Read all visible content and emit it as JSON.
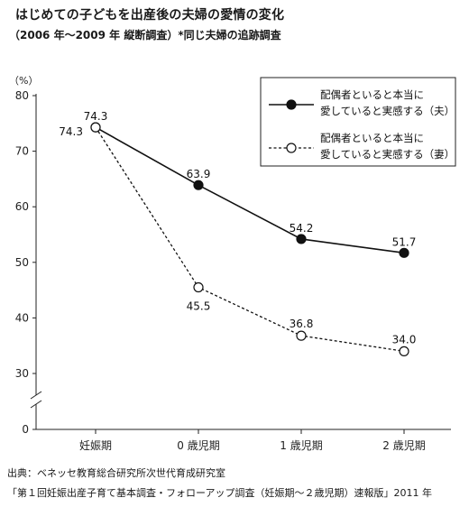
{
  "title": "はじめての子どもを出産後の夫婦の愛情の変化",
  "subtitle": "（2006 年～2009 年 縦断調査）*同じ夫婦の追跡調査",
  "source_line1": "出典：ベネッセ教育総合研究所次世代育成研究室",
  "source_line2": "「第１回妊娠出産子育て基本調査・フォローアップ調査（妊娠期～２歳児期）速報版」2011 年",
  "chart_data": {
    "type": "line",
    "categories": [
      "妊娠期",
      "0 歳児期",
      "1 歳児期",
      "2 歳児期"
    ],
    "series": [
      {
        "name": "配偶者といると本当に愛していると実感する（夫）",
        "values": [
          74.3,
          63.9,
          54.2,
          51.7
        ],
        "style": "solid",
        "marker": "filled",
        "color": "#111111"
      },
      {
        "name": "配偶者といると本当に愛していると実感する（妻）",
        "values": [
          74.3,
          45.5,
          36.8,
          34.0
        ],
        "style": "dotted",
        "marker": "open",
        "color": "#111111"
      }
    ],
    "data_labels": [
      [
        "74.3",
        "63.9",
        "54.2",
        "51.7"
      ],
      [
        "74.3",
        "45.5",
        "36.8",
        "34.0"
      ]
    ],
    "yunit": "（%）",
    "yticks": [
      0,
      30,
      40,
      50,
      60,
      70,
      80
    ],
    "ylim": [
      0,
      80
    ],
    "axis_break": true,
    "grid": false,
    "legend": {
      "placement": "top-right",
      "items": [
        {
          "line1": "配偶者といると本当に",
          "line2": "愛していると実感する（夫）"
        },
        {
          "line1": "配偶者といると本当に",
          "line2": "愛していると実感する（妻）"
        }
      ]
    }
  }
}
